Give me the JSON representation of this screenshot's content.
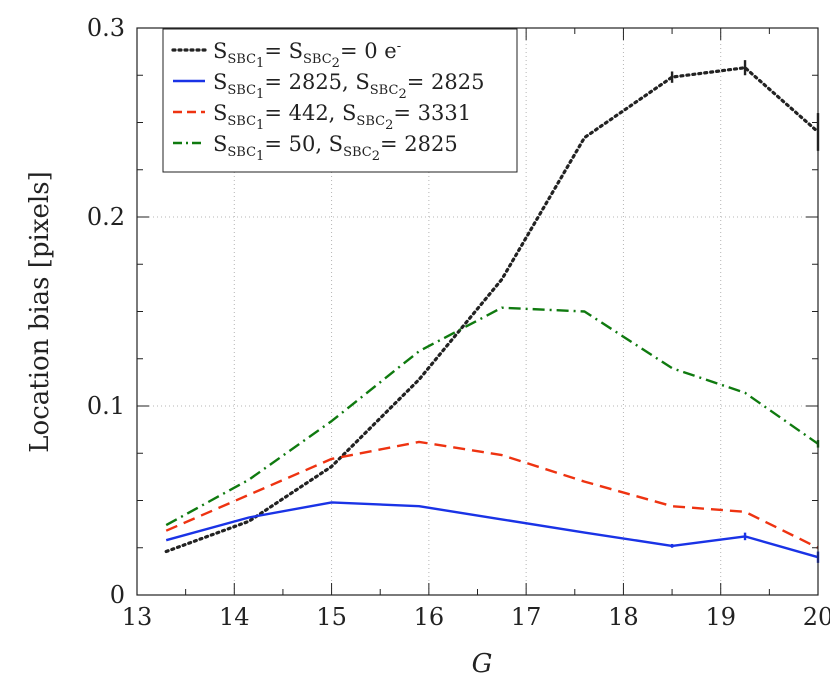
{
  "chart_data": {
    "type": "line",
    "xlabel": "G",
    "ylabel": "Location bias [pixels]",
    "xlim": [
      13,
      20
    ],
    "ylim": [
      0,
      0.3
    ],
    "xticks": [
      "13",
      "14",
      "15",
      "16",
      "17",
      "18",
      "19",
      "20"
    ],
    "yticks": [
      "0",
      "0.1",
      "0.2",
      "0.3"
    ],
    "grid": true,
    "legend_position": "top-left",
    "series": [
      {
        "name": "S_SBC1= S_SBC2= 0 e-",
        "legend": {
          "a": "S",
          "sub1": "SBC",
          "n1": "1",
          "mid": "= S",
          "sub2": "SBC",
          "n2": "2",
          "tail": "= 0 e",
          "sup": "-"
        },
        "color": "#222222",
        "style": "dotted",
        "x": [
          13.3,
          14.15,
          15.0,
          15.9,
          16.75,
          17.6,
          18.5,
          19.25,
          20.0
        ],
        "y": [
          0.023,
          0.039,
          0.068,
          0.114,
          0.167,
          0.242,
          0.274,
          0.279,
          0.245
        ],
        "errors": [
          0,
          0,
          0,
          0,
          0,
          0,
          0.003,
          0.004,
          0.01
        ]
      },
      {
        "name": "S_SBC1= 2825, S_SBC2= 2825",
        "legend": {
          "a": "S",
          "sub1": "SBC",
          "n1": "1",
          "mid": "= 2825, S",
          "sub2": "SBC",
          "n2": "2",
          "tail": "= 2825",
          "sup": ""
        },
        "color": "#1a33e6",
        "style": "solid",
        "x": [
          13.3,
          14.15,
          15.0,
          15.9,
          16.75,
          17.6,
          18.5,
          19.25,
          20.0
        ],
        "y": [
          0.029,
          0.041,
          0.049,
          0.047,
          0.04,
          0.033,
          0.026,
          0.031,
          0.02
        ],
        "errors": [
          0,
          0,
          0,
          0,
          0,
          0,
          0.001,
          0.002,
          0.003
        ]
      },
      {
        "name": "S_SBC1= 442, S_SBC2= 3331",
        "legend": {
          "a": "S",
          "sub1": "SBC",
          "n1": "1",
          "mid": "= 442, S",
          "sub2": "SBC",
          "n2": "2",
          "tail": "= 3331",
          "sup": ""
        },
        "color": "#ee3311",
        "style": "dashed",
        "x": [
          13.3,
          14.15,
          15.0,
          15.9,
          16.75,
          17.6,
          18.5,
          19.25,
          20.0
        ],
        "y": [
          0.034,
          0.053,
          0.072,
          0.081,
          0.074,
          0.06,
          0.047,
          0.044,
          0.025
        ],
        "errors": [
          0,
          0,
          0,
          0,
          0,
          0,
          0,
          0,
          0
        ]
      },
      {
        "name": "S_SBC1= 50, S_SBC2= 2825",
        "legend": {
          "a": "S",
          "sub1": "SBC",
          "n1": "1",
          "mid": "= 50, S",
          "sub2": "SBC",
          "n2": "2",
          "tail": "= 2825",
          "sup": ""
        },
        "color": "#0f7a0f",
        "style": "dashdot",
        "x": [
          13.3,
          14.15,
          15.0,
          15.9,
          16.75,
          17.6,
          18.5,
          19.25,
          20.0
        ],
        "y": [
          0.037,
          0.061,
          0.092,
          0.129,
          0.152,
          0.15,
          0.12,
          0.107,
          0.08
        ],
        "errors": [
          0,
          0,
          0,
          0,
          0,
          0,
          0,
          0,
          0.002
        ]
      }
    ]
  }
}
